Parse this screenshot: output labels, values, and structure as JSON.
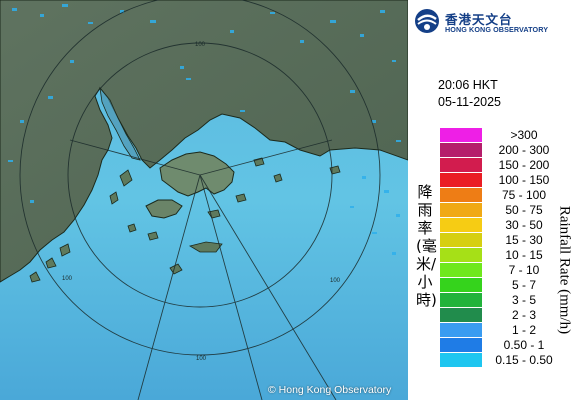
{
  "header": {
    "org_name_zh": "香港天文台",
    "org_name_en": "HONG KONG OBSERVATORY"
  },
  "timestamp": {
    "time": "20:06 HKT",
    "date": "05-11-2025"
  },
  "legend": {
    "title_zh": "降雨率(毫米/小時)",
    "title_en": "Rainfall Rate (mm/h)",
    "entries": [
      {
        "label": ">300",
        "color": "#ee1fe6"
      },
      {
        "label": "200 - 300",
        "color": "#b51e6b"
      },
      {
        "label": "150 - 200",
        "color": "#d21c4e"
      },
      {
        "label": "100 - 150",
        "color": "#ea1d24"
      },
      {
        "label": "75 - 100",
        "color": "#ee7d15"
      },
      {
        "label": "50 - 75",
        "color": "#f0a915"
      },
      {
        "label": "30 - 50",
        "color": "#f6cc14"
      },
      {
        "label": "15 - 30",
        "color": "#d6cf11"
      },
      {
        "label": "10 - 15",
        "color": "#a6e017"
      },
      {
        "label": "7 - 10",
        "color": "#6fe81c"
      },
      {
        "label": "5 - 7",
        "color": "#35d31c"
      },
      {
        "label": "3 - 5",
        "color": "#22b33b"
      },
      {
        "label": "2 - 3",
        "color": "#218c4c"
      },
      {
        "label": "1 - 2",
        "color": "#3a9cf1"
      },
      {
        "label": "0.50 - 1",
        "color": "#1f7ce6"
      },
      {
        "label": "0.15 - 0.50",
        "color": "#1ec6f0"
      }
    ]
  },
  "map": {
    "range_labels": [
      "100",
      "100",
      "100",
      "100"
    ],
    "copyright": "© Hong Kong Observatory"
  }
}
